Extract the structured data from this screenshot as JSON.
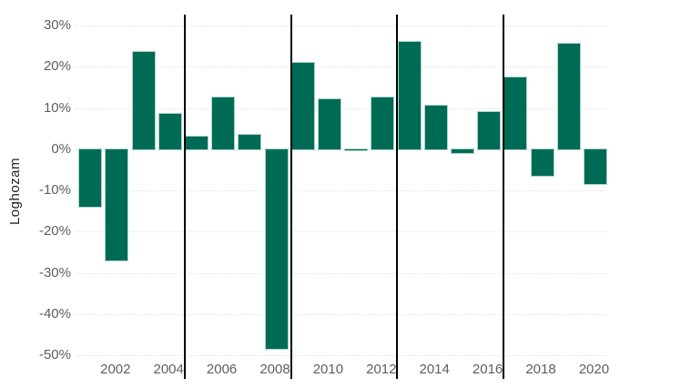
{
  "chart_data": {
    "type": "bar",
    "title": "",
    "xlabel": "",
    "ylabel": "Loghozam",
    "categories": [
      2001,
      2002,
      2003,
      2004,
      2005,
      2006,
      2007,
      2008,
      2009,
      2010,
      2011,
      2012,
      2013,
      2014,
      2015,
      2016,
      2017,
      2018,
      2019,
      2020
    ],
    "values": [
      -14,
      -27,
      23.5,
      8.5,
      3,
      12.5,
      3.5,
      -48.5,
      21,
      12,
      -0.3,
      12.5,
      26,
      10.5,
      -1,
      9,
      17.5,
      -6.5,
      25.5,
      -8.5
    ],
    "unit": "%",
    "ylim": [
      -50,
      30
    ],
    "y_ticks": [
      30,
      20,
      10,
      0,
      -10,
      -20,
      -30,
      -40,
      -50
    ],
    "y_tick_labels": [
      "30%",
      "20%",
      "10%",
      "0%",
      "-10%",
      "-20%",
      "-30%",
      "-40%",
      "-50%"
    ],
    "x_tick_labels": [
      "2002",
      "2004",
      "2006",
      "2008",
      "2010",
      "2012",
      "2014",
      "2016",
      "2018",
      "2020"
    ],
    "grid": "horizontal-dotted",
    "legend": "none",
    "bar_color": "#006B55",
    "separator_color": "#000000",
    "separators_after_years": [
      2004,
      2008,
      2012,
      2016
    ]
  }
}
